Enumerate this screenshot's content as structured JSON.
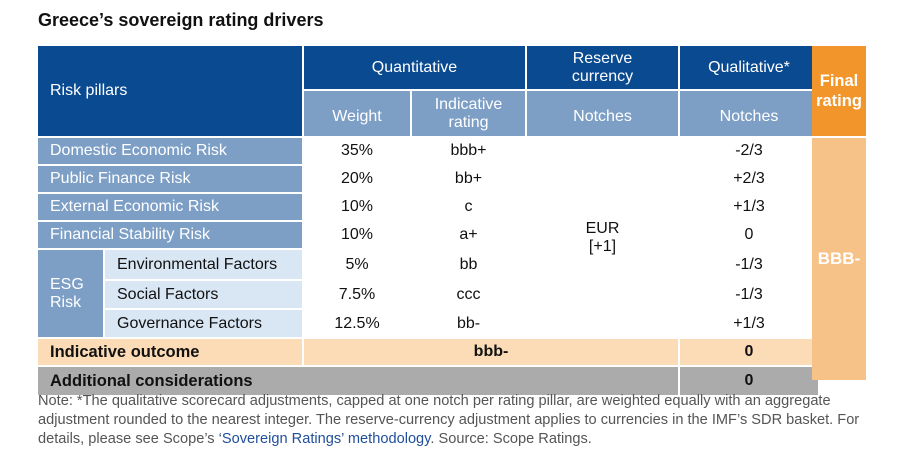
{
  "title": "Greece’s sovereign rating drivers",
  "header": {
    "risk_pillars": "Risk pillars",
    "quantitative": "Quantitative",
    "reserve_currency": "Reserve currency",
    "qualitative": "Qualitative*",
    "final_rating": "Final rating",
    "weight": "Weight",
    "indicative_rating": "Indicative rating",
    "notches": "Notches",
    "notches2": "Notches"
  },
  "rows": [
    {
      "pillar": "Domestic Economic Risk",
      "weight": "35%",
      "rating": "bbb+",
      "notches": "-2/3"
    },
    {
      "pillar": "Public Finance Risk",
      "weight": "20%",
      "rating": "bb+",
      "notches": "+2/3"
    },
    {
      "pillar": "External Economic Risk",
      "weight": "10%",
      "rating": "c",
      "notches": "+1/3"
    },
    {
      "pillar": "Financial Stability Risk",
      "weight": "10%",
      "rating": "a+",
      "notches": "0"
    }
  ],
  "esg": {
    "label": "ESG Risk",
    "rows": [
      {
        "pillar": "Environmental Factors",
        "weight": "5%",
        "rating": "bb",
        "notches": "-1/3"
      },
      {
        "pillar": "Social Factors",
        "weight": "7.5%",
        "rating": "ccc",
        "notches": "-1/3"
      },
      {
        "pillar": "Governance Factors",
        "weight": "12.5%",
        "rating": "bb-",
        "notches": "+1/3"
      }
    ]
  },
  "reserve": {
    "currency": "EUR",
    "adjustment": "[+1]"
  },
  "final": {
    "rating": "BBB-"
  },
  "indicative_outcome": {
    "label": "Indicative outcome",
    "value": "bbb-",
    "notches": "0"
  },
  "additional": {
    "label": "Additional considerations",
    "notches": "0"
  },
  "note": {
    "text": "Note: *The qualitative scorecard adjustments, capped at one notch per rating pillar, are weighted equally with an aggregate adjustment rounded to the nearest integer. The reserve-currency adjustment applies to currencies in the IMF’s SDR basket. For details, please see Scope’s ",
    "link": "‘Sovereign Ratings’ methodology",
    "source": ". Source: Scope Ratings."
  }
}
